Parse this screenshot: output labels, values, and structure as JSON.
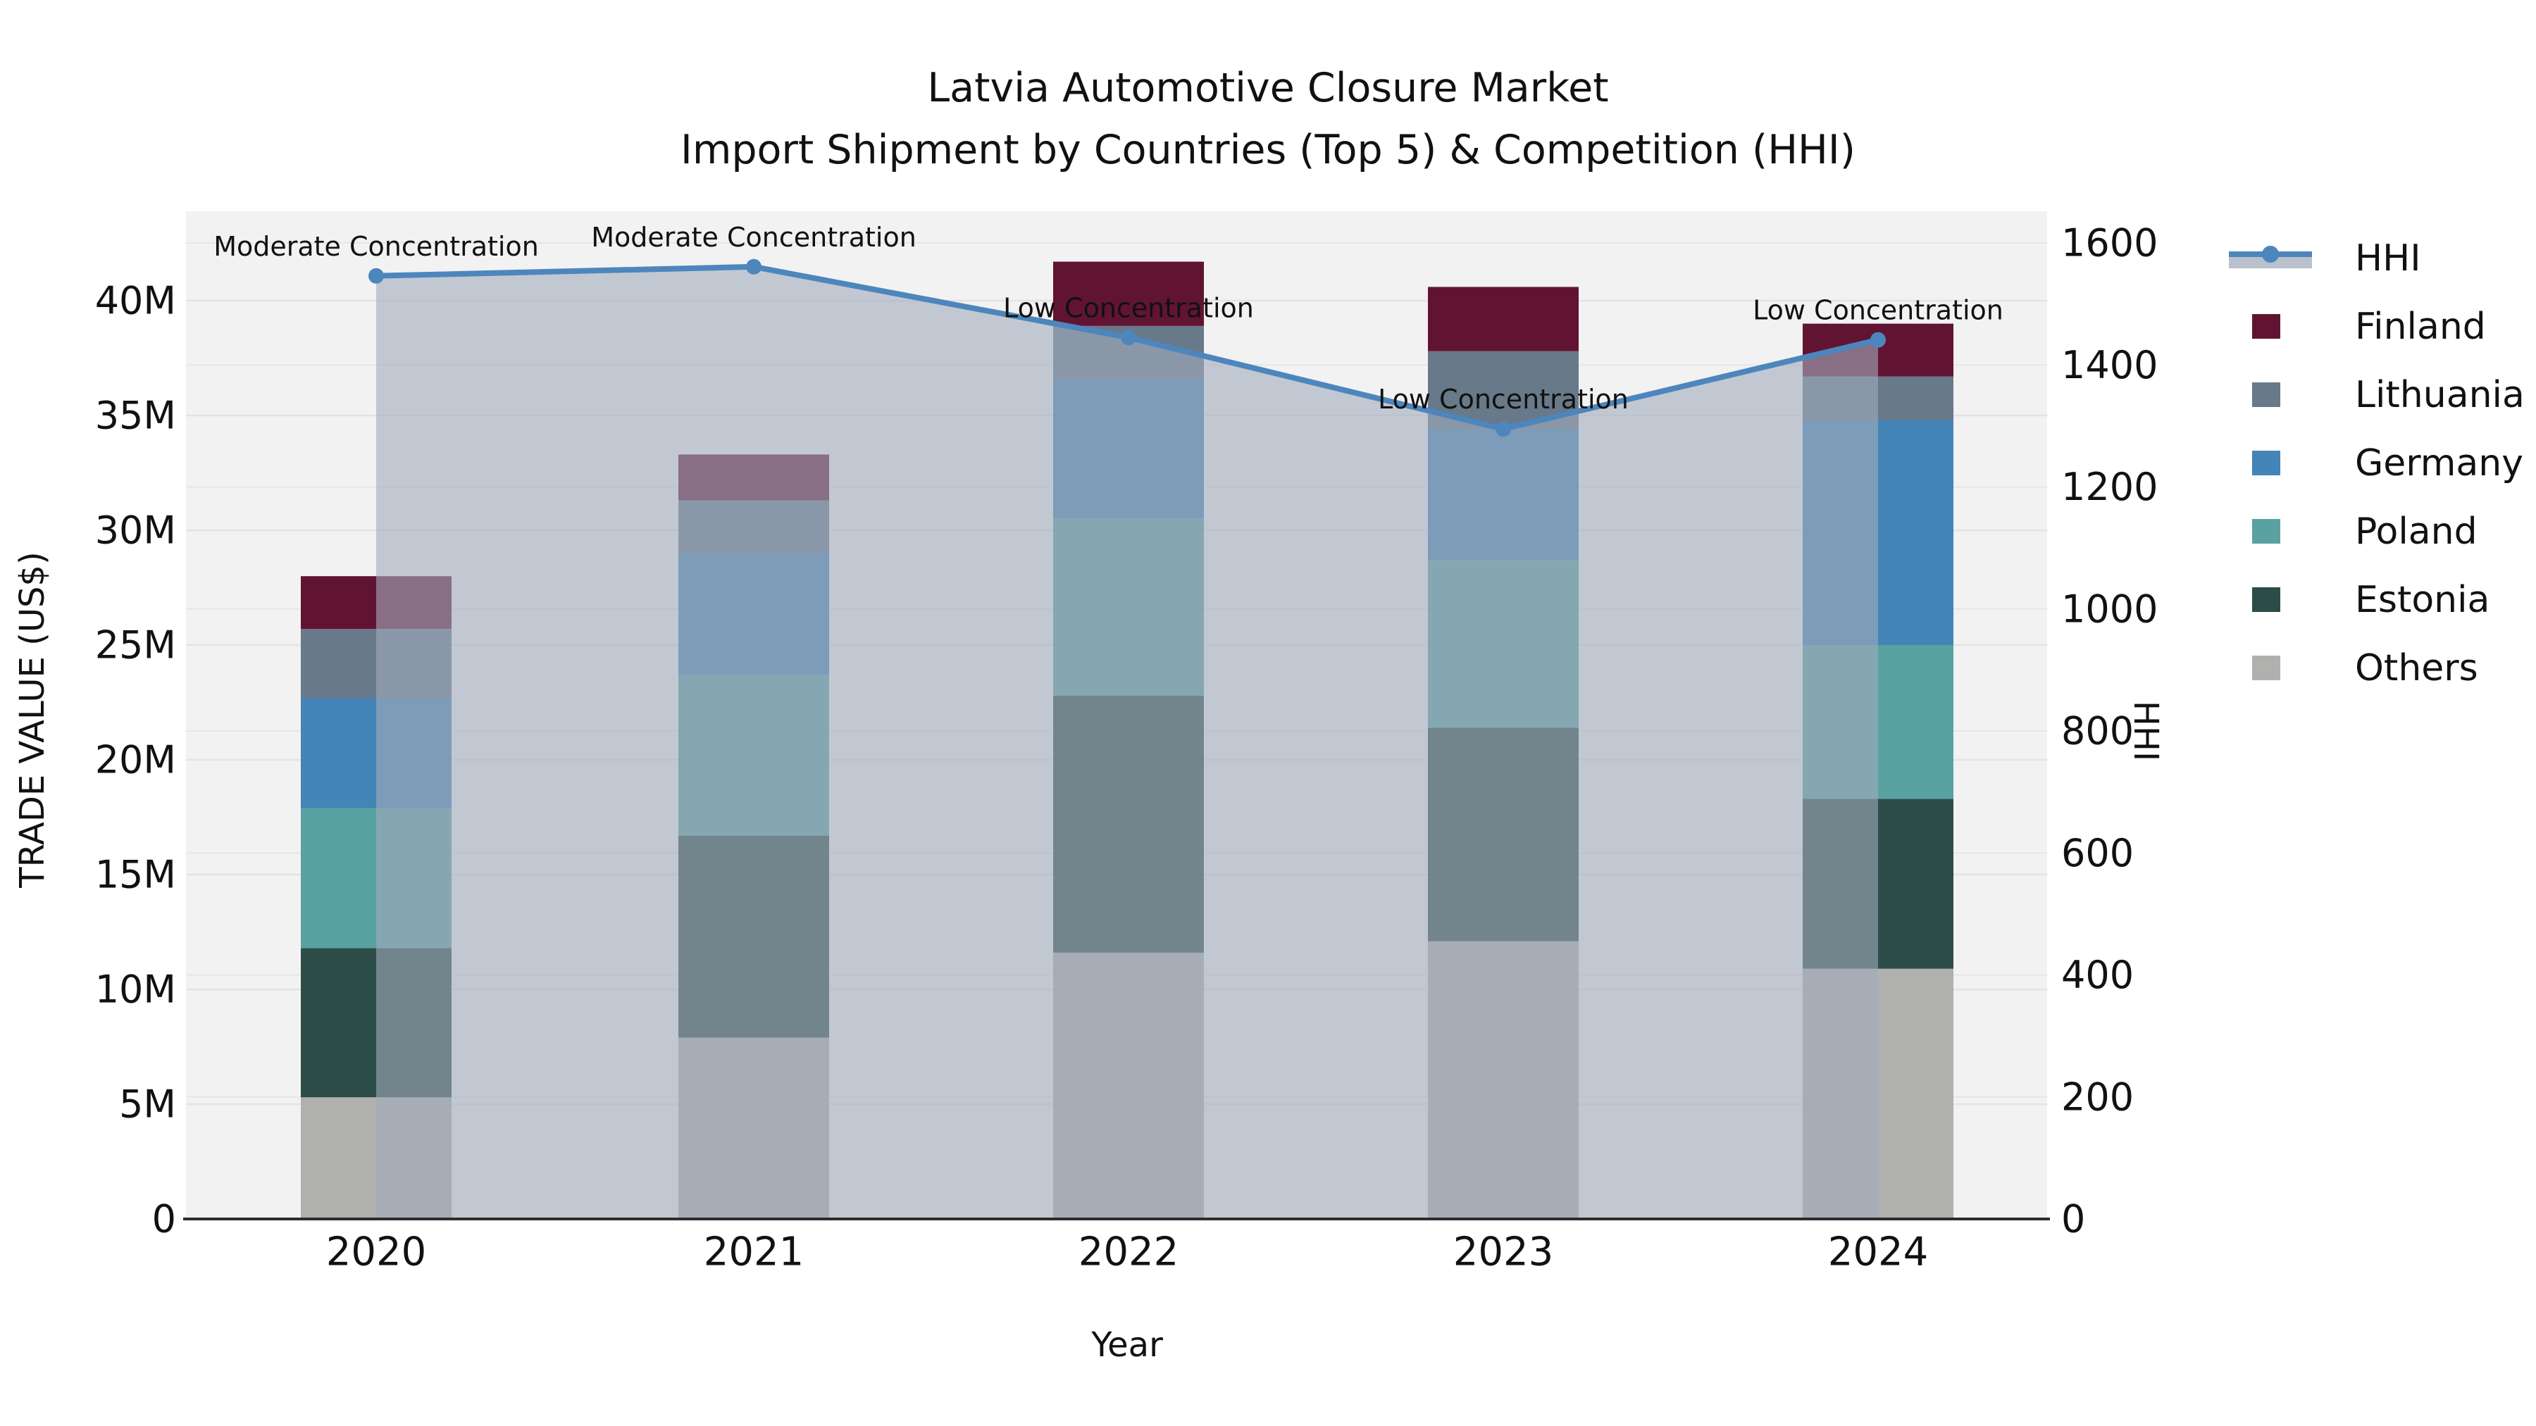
{
  "title": {
    "line1": "Latvia Automotive Closure Market",
    "line2": "Import Shipment by Countries (Top 5) & Competition (HHI)"
  },
  "chart_data": {
    "type": "bar",
    "subtype": "stacked-bars-with-line-overlay",
    "categories": [
      "2020",
      "2021",
      "2022",
      "2023",
      "2024"
    ],
    "xlabel": "Year",
    "ylabel_left": "TRADE VALUE (US$)",
    "ylabel_right": "HHI",
    "y_left": {
      "max": 40,
      "tick_values": [
        0,
        5,
        10,
        15,
        20,
        25,
        30,
        35,
        40
      ],
      "tick_labels": [
        "0",
        "5M",
        "10M",
        "15M",
        "20M",
        "25M",
        "30M",
        "35M",
        "40M"
      ]
    },
    "y_right": {
      "max": 1600,
      "tick_values": [
        0,
        200,
        400,
        600,
        800,
        1000,
        1200,
        1400,
        1600
      ],
      "tick_labels": [
        "0",
        "200",
        "400",
        "600",
        "800",
        "1000",
        "1200",
        "1400",
        "1600"
      ]
    },
    "series": [
      {
        "name": "Others",
        "color": "#b0b0ae",
        "values": [
          5.3,
          7.9,
          11.6,
          12.1,
          10.9
        ]
      },
      {
        "name": "Estonia",
        "color": "#2c4c48",
        "values": [
          6.5,
          8.8,
          11.2,
          9.3,
          7.4
        ]
      },
      {
        "name": "Poland",
        "color": "#5aa1a1",
        "values": [
          6.1,
          7.0,
          7.7,
          7.3,
          6.7
        ]
      },
      {
        "name": "Germany",
        "color": "#4484b6",
        "values": [
          4.8,
          5.3,
          6.1,
          5.7,
          9.8
        ]
      },
      {
        "name": "Lithuania",
        "color": "#68798a",
        "values": [
          3.0,
          2.3,
          2.3,
          3.4,
          1.9
        ]
      },
      {
        "name": "Finland",
        "color": "#611432",
        "values": [
          2.3,
          2.0,
          2.8,
          2.8,
          2.3
        ]
      }
    ],
    "stack_totals_M": [
      28.0,
      33.3,
      41.7,
      40.6,
      39.0
    ],
    "hhi": {
      "name": "HHI",
      "color": "#4d86bd",
      "area_fill": "rgba(161,172,188,0.6)",
      "values": [
        1546,
        1561,
        1445,
        1295,
        1441
      ]
    },
    "annotations": [
      {
        "label": "Moderate Concentration",
        "year": "2020"
      },
      {
        "label": "Moderate Concentration",
        "year": "2021"
      },
      {
        "label": "Low Concentration",
        "year": "2022"
      },
      {
        "label": "Low Concentration",
        "year": "2023"
      },
      {
        "label": "Low Concentration",
        "year": "2024"
      }
    ],
    "legend": {
      "items": [
        {
          "label": "HHI"
        },
        {
          "label": "Finland"
        },
        {
          "label": "Lithuania"
        },
        {
          "label": "Germany"
        },
        {
          "label": "Poland"
        },
        {
          "label": "Estonia"
        },
        {
          "label": "Others"
        }
      ]
    }
  }
}
